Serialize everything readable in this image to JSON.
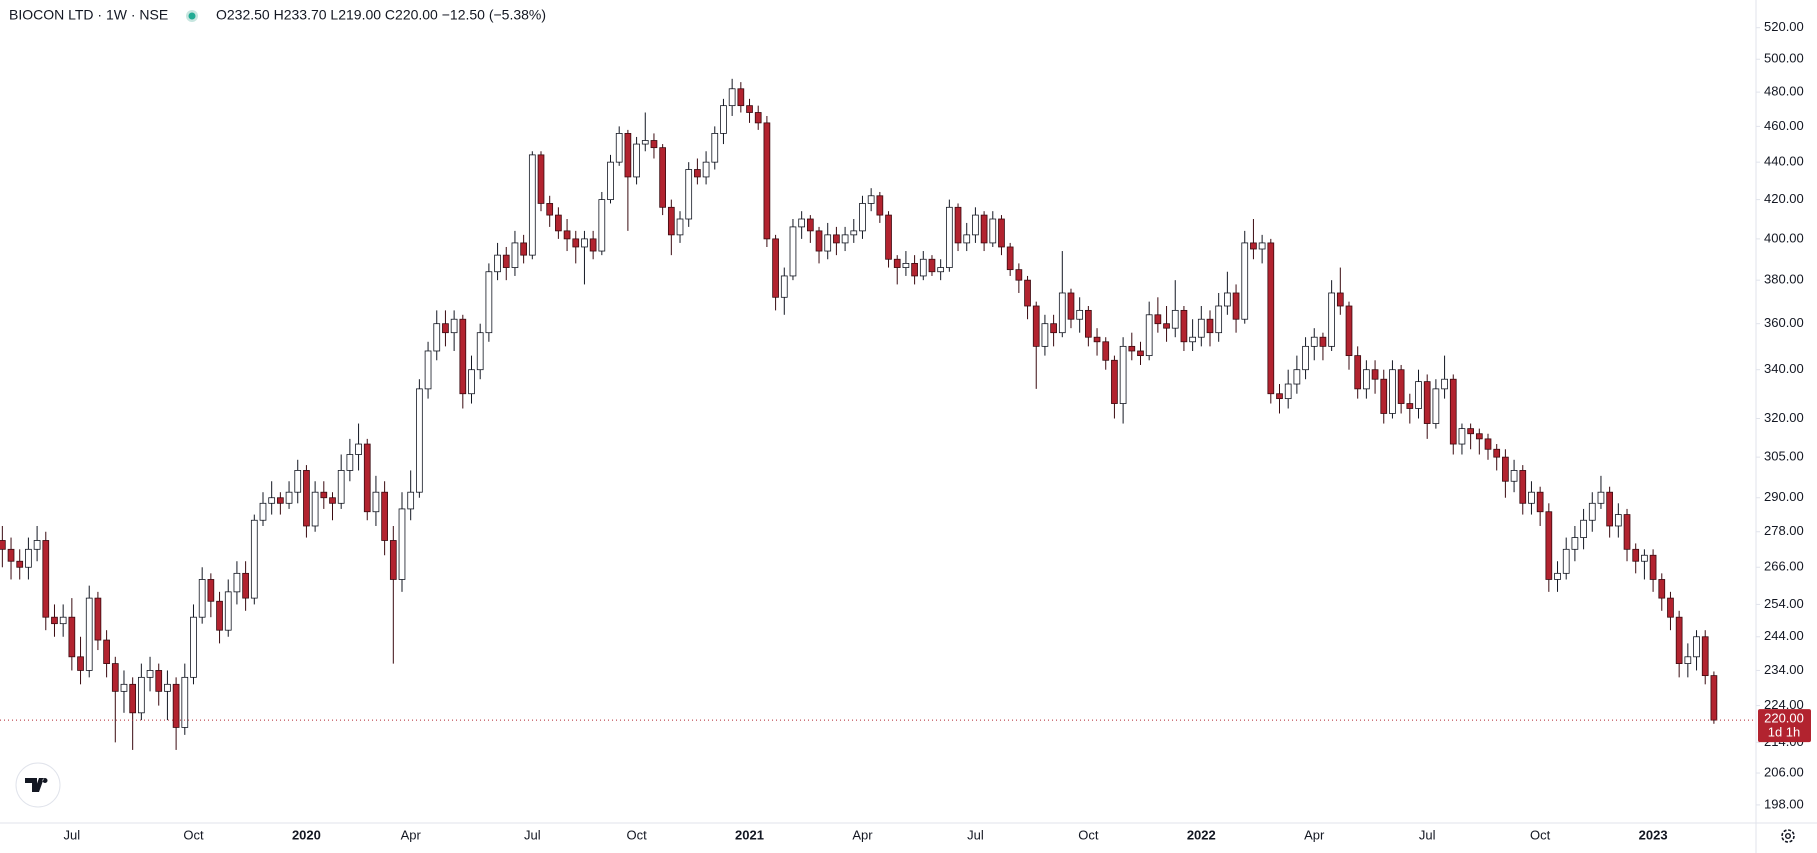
{
  "chart_data": {
    "type": "candlestick",
    "title": "BIOCON LTD · 1W · NSE",
    "legend": "O232.50 H233.70 L219.00 C220.00 −12.50 (−5.38%)",
    "up_color": "#ffffff",
    "down_color": "#b2232f",
    "log_scale": true,
    "grid": false,
    "ylim": [
      193.6,
      538.2
    ],
    "yticks": [
      {
        "value": 198,
        "label": "198.00"
      },
      {
        "value": 206,
        "label": "206.00"
      },
      {
        "value": 214,
        "label": "214.00"
      },
      {
        "value": 224,
        "label": "224.00"
      },
      {
        "value": 234,
        "label": "234.00"
      },
      {
        "value": 244,
        "label": "244.00"
      },
      {
        "value": 254,
        "label": "254.00"
      },
      {
        "value": 266,
        "label": "266.00"
      },
      {
        "value": 278,
        "label": "278.00"
      },
      {
        "value": 290,
        "label": "290.00"
      },
      {
        "value": 305,
        "label": "305.00"
      },
      {
        "value": 320,
        "label": "320.00"
      },
      {
        "value": 340,
        "label": "340.00"
      },
      {
        "value": 360,
        "label": "360.00"
      },
      {
        "value": 380,
        "label": "380.00"
      },
      {
        "value": 400,
        "label": "400.00"
      },
      {
        "value": 420,
        "label": "420.00"
      },
      {
        "value": 440,
        "label": "440.00"
      },
      {
        "value": 460,
        "label": "460.00"
      },
      {
        "value": 480,
        "label": "480.00"
      },
      {
        "value": 500,
        "label": "500.00"
      },
      {
        "value": 520,
        "label": "520.00"
      }
    ],
    "last_price": {
      "value": 220,
      "label": "220.00"
    },
    "countdown": "1d 1h",
    "categories": [
      null,
      null,
      null,
      null,
      null,
      null,
      null,
      null,
      "Jul",
      null,
      null,
      null,
      null,
      null,
      null,
      null,
      null,
      null,
      null,
      null,
      null,
      null,
      "Oct",
      null,
      null,
      null,
      null,
      null,
      null,
      null,
      null,
      null,
      null,
      null,
      null,
      "2020",
      null,
      null,
      null,
      null,
      null,
      null,
      null,
      null,
      null,
      null,
      null,
      "Apr",
      null,
      null,
      null,
      null,
      null,
      null,
      null,
      null,
      null,
      null,
      null,
      null,
      null,
      "Jul",
      null,
      null,
      null,
      null,
      null,
      null,
      null,
      null,
      null,
      null,
      null,
      "Oct",
      null,
      null,
      null,
      null,
      null,
      null,
      null,
      null,
      null,
      null,
      null,
      null,
      "2021",
      null,
      null,
      null,
      null,
      null,
      null,
      null,
      null,
      null,
      null,
      null,
      null,
      "Apr",
      null,
      null,
      null,
      null,
      null,
      null,
      null,
      null,
      null,
      null,
      null,
      null,
      "Jul",
      null,
      null,
      null,
      null,
      null,
      null,
      null,
      null,
      null,
      null,
      null,
      null,
      "Oct",
      null,
      null,
      null,
      null,
      null,
      null,
      null,
      null,
      null,
      null,
      null,
      null,
      "2022",
      null,
      null,
      null,
      null,
      null,
      null,
      null,
      null,
      null,
      null,
      null,
      null,
      "Apr",
      null,
      null,
      null,
      null,
      null,
      null,
      null,
      null,
      null,
      null,
      null,
      null,
      "Jul",
      null,
      null,
      null,
      null,
      null,
      null,
      null,
      null,
      null,
      null,
      null,
      null,
      "Oct",
      null,
      null,
      null,
      null,
      null,
      null,
      null,
      null,
      null,
      null,
      null,
      null,
      "2023",
      null,
      null,
      null,
      null,
      null,
      null,
      null
    ],
    "ohlc": [
      [
        275,
        280,
        266,
        272
      ],
      [
        272,
        276,
        262,
        268
      ],
      [
        268,
        272,
        262,
        266
      ],
      [
        266,
        276,
        262,
        272
      ],
      [
        272,
        280,
        268,
        275
      ],
      [
        275,
        278,
        246,
        250
      ],
      [
        250,
        254,
        244,
        248
      ],
      [
        248,
        254,
        244,
        250
      ],
      [
        250,
        256,
        234,
        238
      ],
      [
        238,
        244,
        230,
        234
      ],
      [
        234,
        260,
        232,
        256
      ],
      [
        256,
        258,
        240,
        243
      ],
      [
        243,
        246,
        232,
        236
      ],
      [
        236,
        238,
        214,
        228
      ],
      [
        228,
        234,
        222,
        230
      ],
      [
        230,
        232,
        212,
        222
      ],
      [
        222,
        236,
        220,
        232
      ],
      [
        232,
        238,
        228,
        234
      ],
      [
        234,
        236,
        224,
        228
      ],
      [
        228,
        234,
        220,
        230
      ],
      [
        230,
        232,
        212,
        218
      ],
      [
        218,
        236,
        216,
        232
      ],
      [
        232,
        254,
        230,
        250
      ],
      [
        250,
        266,
        248,
        262
      ],
      [
        262,
        264,
        250,
        255
      ],
      [
        255,
        258,
        242,
        246
      ],
      [
        246,
        262,
        244,
        258
      ],
      [
        258,
        268,
        254,
        264
      ],
      [
        264,
        268,
        252,
        256
      ],
      [
        256,
        284,
        254,
        282
      ],
      [
        282,
        292,
        280,
        288
      ],
      [
        288,
        296,
        284,
        290
      ],
      [
        290,
        292,
        284,
        288
      ],
      [
        288,
        296,
        286,
        292
      ],
      [
        292,
        304,
        288,
        300
      ],
      [
        300,
        302,
        276,
        280
      ],
      [
        280,
        296,
        278,
        292
      ],
      [
        292,
        296,
        286,
        290
      ],
      [
        290,
        292,
        282,
        288
      ],
      [
        288,
        306,
        286,
        300
      ],
      [
        300,
        312,
        296,
        306
      ],
      [
        306,
        318,
        300,
        310
      ],
      [
        310,
        312,
        282,
        285
      ],
      [
        285,
        298,
        280,
        292
      ],
      [
        292,
        296,
        270,
        275
      ],
      [
        275,
        280,
        236,
        262
      ],
      [
        262,
        292,
        258,
        286
      ],
      [
        286,
        300,
        282,
        292
      ],
      [
        292,
        336,
        290,
        332
      ],
      [
        332,
        352,
        328,
        348
      ],
      [
        348,
        366,
        344,
        360
      ],
      [
        360,
        366,
        350,
        356
      ],
      [
        356,
        366,
        348,
        362
      ],
      [
        362,
        364,
        324,
        330
      ],
      [
        330,
        346,
        326,
        340
      ],
      [
        340,
        360,
        336,
        356
      ],
      [
        356,
        388,
        352,
        384
      ],
      [
        384,
        398,
        380,
        392
      ],
      [
        392,
        396,
        380,
        386
      ],
      [
        386,
        404,
        382,
        398
      ],
      [
        398,
        402,
        388,
        392
      ],
      [
        392,
        446,
        390,
        444
      ],
      [
        444,
        446,
        414,
        418
      ],
      [
        418,
        422,
        406,
        412
      ],
      [
        412,
        416,
        400,
        404
      ],
      [
        404,
        410,
        394,
        400
      ],
      [
        400,
        404,
        388,
        396
      ],
      [
        396,
        404,
        378,
        400
      ],
      [
        400,
        404,
        390,
        394
      ],
      [
        394,
        424,
        392,
        420
      ],
      [
        420,
        444,
        418,
        440
      ],
      [
        440,
        460,
        438,
        456
      ],
      [
        456,
        458,
        404,
        432
      ],
      [
        432,
        454,
        428,
        450
      ],
      [
        450,
        468,
        446,
        452
      ],
      [
        452,
        456,
        442,
        448
      ],
      [
        448,
        450,
        412,
        416
      ],
      [
        416,
        420,
        392,
        402
      ],
      [
        402,
        414,
        398,
        410
      ],
      [
        410,
        440,
        406,
        436
      ],
      [
        436,
        442,
        428,
        432
      ],
      [
        432,
        446,
        428,
        440
      ],
      [
        440,
        460,
        436,
        456
      ],
      [
        456,
        476,
        450,
        472
      ],
      [
        472,
        488,
        466,
        482
      ],
      [
        482,
        486,
        468,
        472
      ],
      [
        472,
        476,
        462,
        468
      ],
      [
        468,
        472,
        458,
        462
      ],
      [
        462,
        466,
        396,
        400
      ],
      [
        400,
        402,
        366,
        372
      ],
      [
        372,
        386,
        364,
        382
      ],
      [
        382,
        410,
        380,
        406
      ],
      [
        406,
        414,
        400,
        410
      ],
      [
        410,
        412,
        398,
        404
      ],
      [
        404,
        406,
        388,
        394
      ],
      [
        394,
        408,
        390,
        402
      ],
      [
        402,
        406,
        392,
        398
      ],
      [
        398,
        406,
        394,
        402
      ],
      [
        402,
        410,
        398,
        404
      ],
      [
        404,
        422,
        400,
        418
      ],
      [
        418,
        426,
        414,
        422
      ],
      [
        422,
        424,
        408,
        412
      ],
      [
        412,
        414,
        386,
        390
      ],
      [
        390,
        392,
        378,
        386
      ],
      [
        386,
        394,
        382,
        388
      ],
      [
        388,
        392,
        378,
        382
      ],
      [
        382,
        394,
        380,
        390
      ],
      [
        390,
        392,
        382,
        384
      ],
      [
        384,
        390,
        380,
        386
      ],
      [
        386,
        420,
        384,
        416
      ],
      [
        416,
        418,
        394,
        398
      ],
      [
        398,
        408,
        394,
        402
      ],
      [
        402,
        416,
        398,
        412
      ],
      [
        412,
        414,
        394,
        398
      ],
      [
        398,
        414,
        396,
        410
      ],
      [
        410,
        412,
        392,
        396
      ],
      [
        396,
        398,
        382,
        385
      ],
      [
        385,
        388,
        374,
        380
      ],
      [
        380,
        382,
        362,
        368
      ],
      [
        368,
        370,
        332,
        350
      ],
      [
        350,
        364,
        346,
        360
      ],
      [
        360,
        364,
        350,
        356
      ],
      [
        356,
        394,
        354,
        374
      ],
      [
        374,
        376,
        358,
        362
      ],
      [
        362,
        372,
        356,
        366
      ],
      [
        366,
        368,
        350,
        354
      ],
      [
        354,
        358,
        346,
        352
      ],
      [
        352,
        354,
        340,
        344
      ],
      [
        344,
        346,
        320,
        326
      ],
      [
        326,
        354,
        318,
        350
      ],
      [
        350,
        356,
        344,
        348
      ],
      [
        348,
        352,
        342,
        346
      ],
      [
        346,
        370,
        344,
        364
      ],
      [
        364,
        372,
        356,
        360
      ],
      [
        360,
        368,
        352,
        358
      ],
      [
        358,
        380,
        354,
        366
      ],
      [
        366,
        368,
        348,
        352
      ],
      [
        352,
        362,
        348,
        354
      ],
      [
        354,
        368,
        350,
        362
      ],
      [
        362,
        366,
        350,
        356
      ],
      [
        356,
        374,
        352,
        368
      ],
      [
        368,
        384,
        364,
        374
      ],
      [
        374,
        378,
        356,
        362
      ],
      [
        362,
        404,
        360,
        398
      ],
      [
        398,
        410,
        390,
        395
      ],
      [
        395,
        402,
        388,
        398
      ],
      [
        398,
        400,
        326,
        330
      ],
      [
        330,
        334,
        322,
        328
      ],
      [
        328,
        340,
        324,
        334
      ],
      [
        334,
        346,
        330,
        340
      ],
      [
        340,
        354,
        336,
        350
      ],
      [
        350,
        358,
        344,
        354
      ],
      [
        354,
        356,
        344,
        350
      ],
      [
        350,
        380,
        348,
        374
      ],
      [
        374,
        386,
        364,
        368
      ],
      [
        368,
        370,
        340,
        346
      ],
      [
        346,
        350,
        328,
        332
      ],
      [
        332,
        344,
        328,
        340
      ],
      [
        340,
        344,
        330,
        336
      ],
      [
        336,
        340,
        318,
        322
      ],
      [
        322,
        344,
        320,
        340
      ],
      [
        340,
        342,
        322,
        326
      ],
      [
        326,
        330,
        318,
        324
      ],
      [
        324,
        340,
        320,
        335
      ],
      [
        335,
        338,
        312,
        318
      ],
      [
        318,
        336,
        316,
        332
      ],
      [
        332,
        346,
        328,
        336
      ],
      [
        336,
        338,
        306,
        310
      ],
      [
        310,
        318,
        306,
        316
      ],
      [
        316,
        318,
        308,
        314
      ],
      [
        314,
        316,
        306,
        312
      ],
      [
        312,
        314,
        304,
        308
      ],
      [
        308,
        310,
        300,
        305
      ],
      [
        305,
        308,
        290,
        296
      ],
      [
        296,
        304,
        292,
        300
      ],
      [
        300,
        302,
        284,
        288
      ],
      [
        288,
        296,
        284,
        292
      ],
      [
        292,
        294,
        280,
        285
      ],
      [
        285,
        288,
        258,
        262
      ],
      [
        262,
        268,
        258,
        264
      ],
      [
        264,
        276,
        262,
        272
      ],
      [
        272,
        280,
        268,
        276
      ],
      [
        276,
        286,
        272,
        282
      ],
      [
        282,
        292,
        278,
        288
      ],
      [
        288,
        298,
        286,
        292
      ],
      [
        292,
        294,
        276,
        280
      ],
      [
        280,
        288,
        276,
        284
      ],
      [
        284,
        286,
        268,
        272
      ],
      [
        272,
        274,
        264,
        268
      ],
      [
        268,
        272,
        262,
        270
      ],
      [
        270,
        272,
        258,
        262
      ],
      [
        262,
        264,
        252,
        256
      ],
      [
        256,
        258,
        246,
        250
      ],
      [
        250,
        252,
        232,
        236
      ],
      [
        236,
        242,
        232,
        238
      ],
      [
        238,
        246,
        234,
        244
      ],
      [
        244,
        246,
        230,
        232.5
      ],
      [
        232.5,
        233.7,
        219,
        220
      ]
    ]
  }
}
